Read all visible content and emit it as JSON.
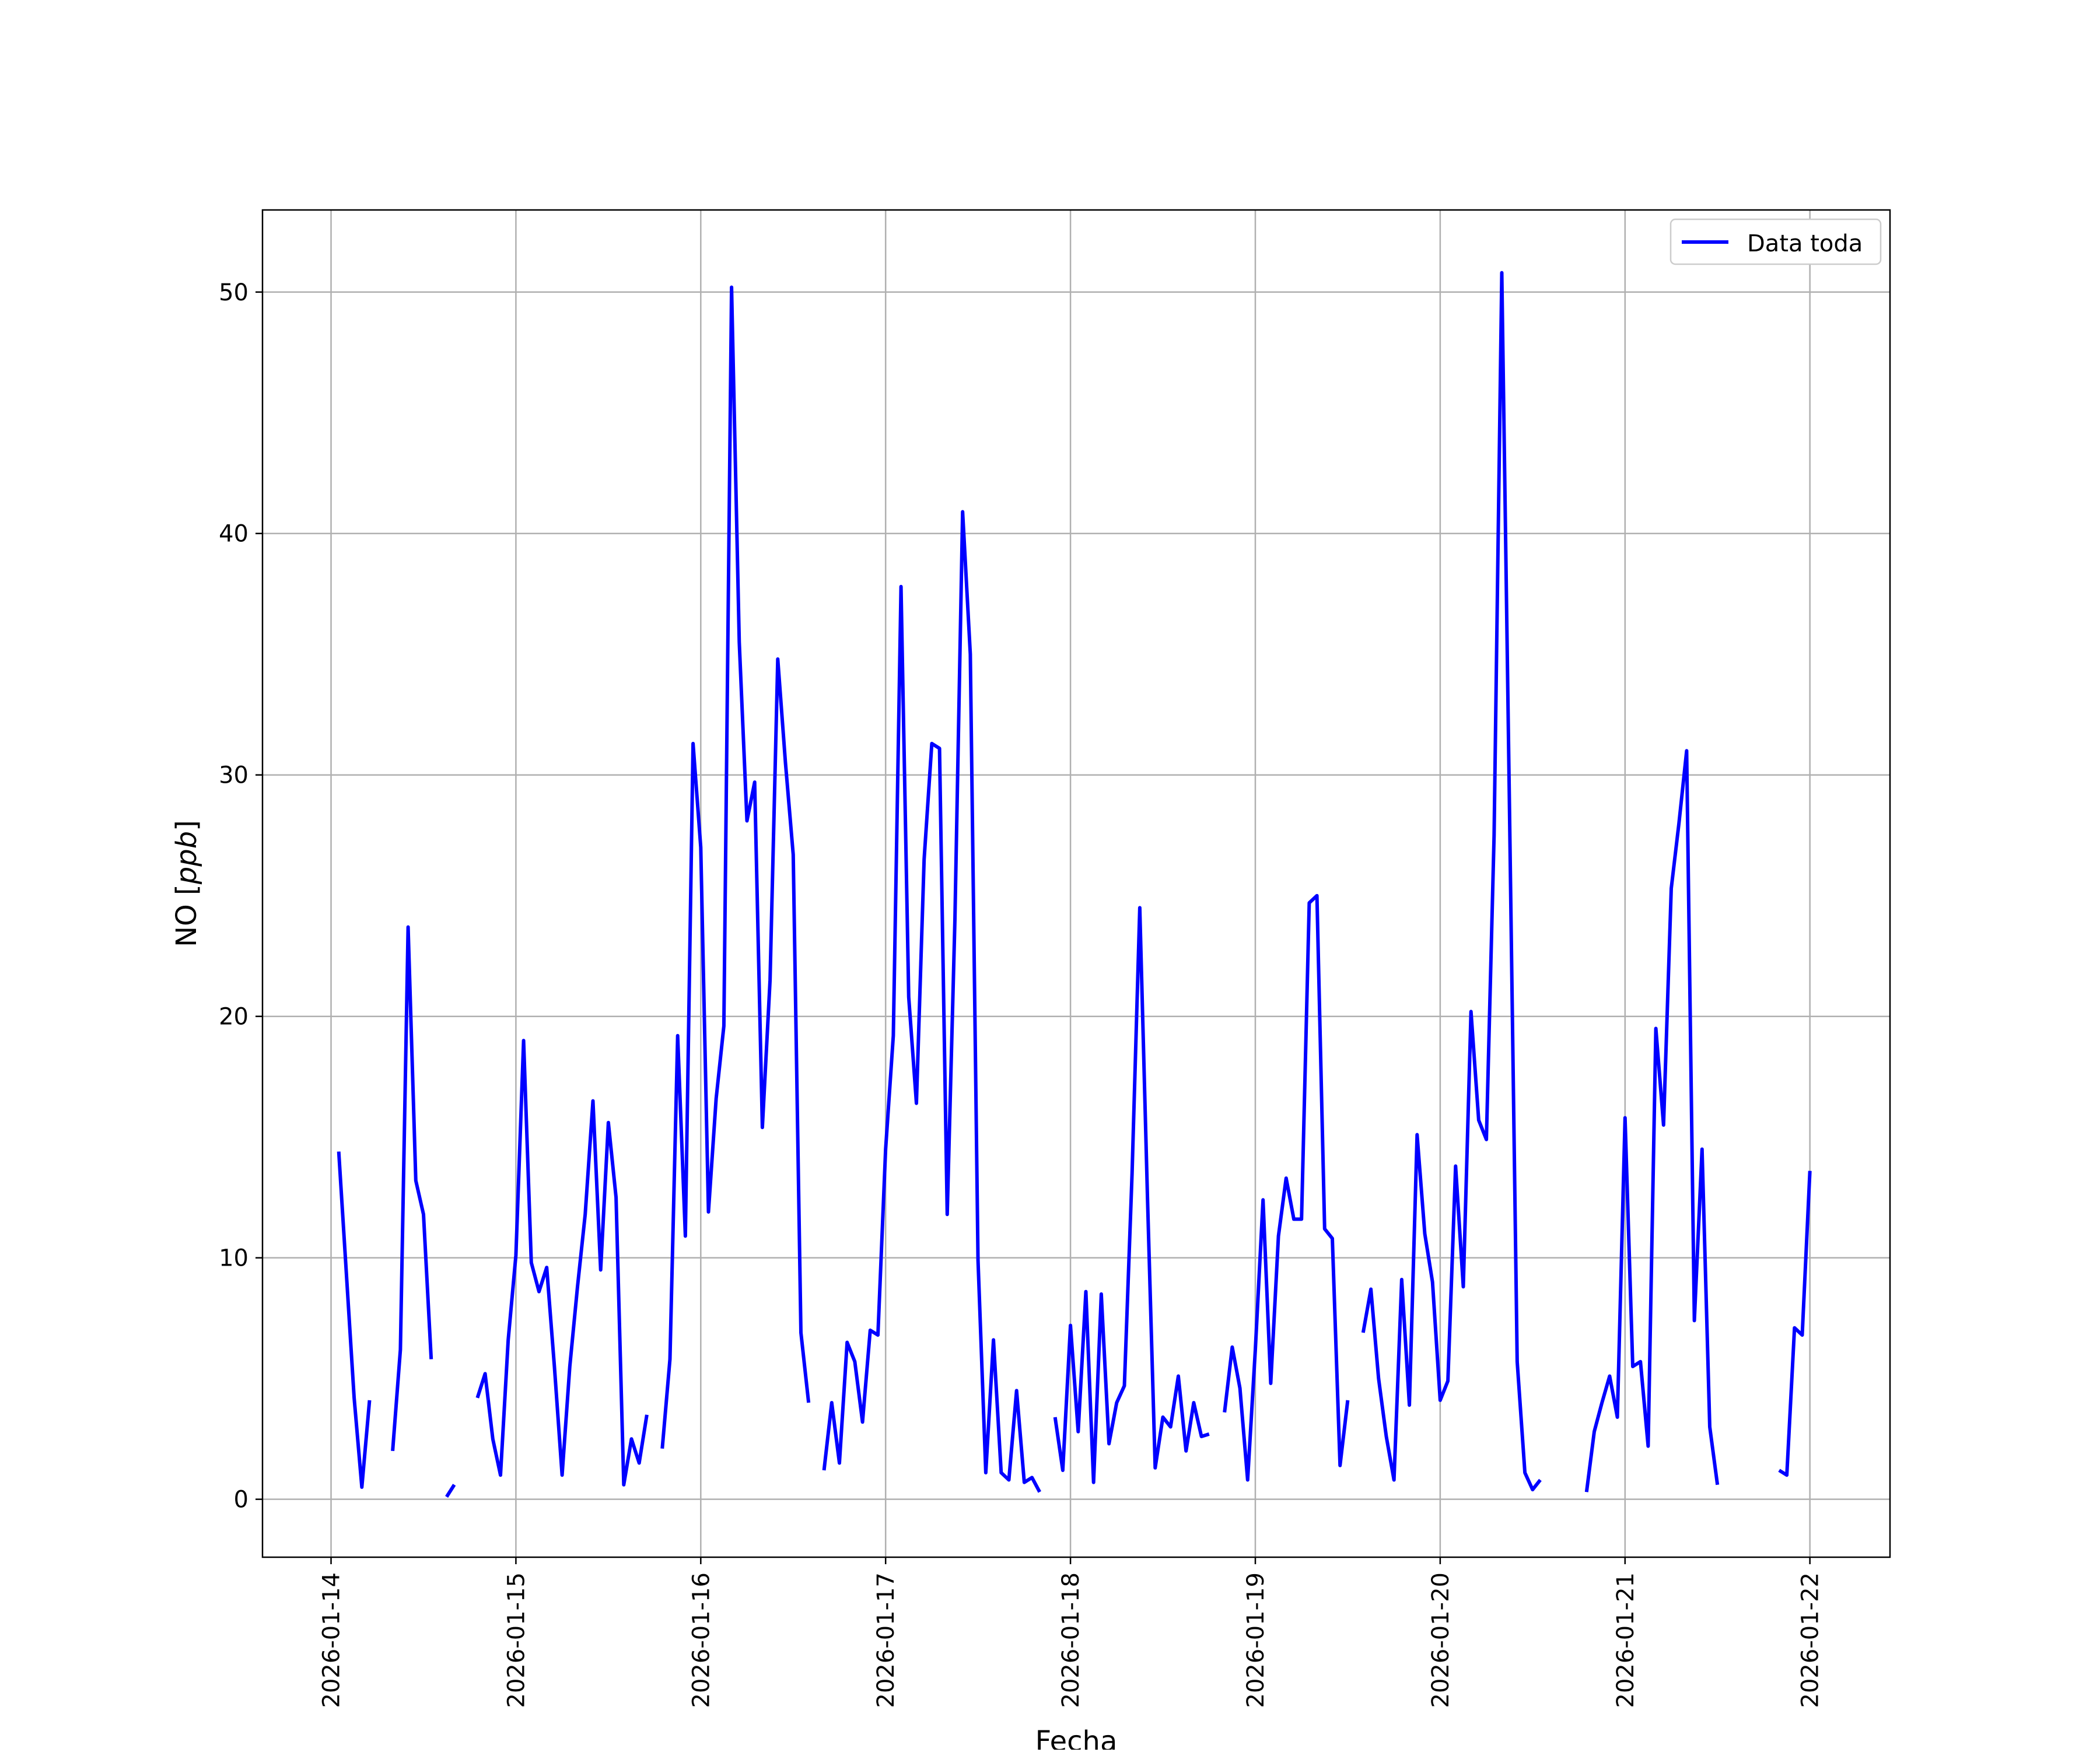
{
  "chart_data": {
    "type": "line",
    "title": "",
    "xlabel": "Fecha",
    "ylabel_main": "NO [",
    "ylabel_unit": "ppb",
    "ylabel_close": "]",
    "xlim": [
      "2026-01-13T15:06",
      "2026-01-22T10:24"
    ],
    "ylim": [
      -2.4,
      53.4
    ],
    "grid": true,
    "legend_position": "upper right",
    "y_ticks": [
      0,
      10,
      20,
      30,
      40,
      50
    ],
    "x_ticks": [
      "2026-01-14",
      "2026-01-15",
      "2026-01-16",
      "2026-01-17",
      "2026-01-18",
      "2026-01-19",
      "2026-01-20",
      "2026-01-21",
      "2026-01-22"
    ],
    "series": [
      {
        "name": "Data toda",
        "color": "#0000ff",
        "points": [
          [
            "2026-01-14T01:00",
            14.4
          ],
          [
            "2026-01-14T03:00",
            4.2
          ],
          [
            "2026-01-14T04:00",
            0.5
          ],
          [
            "2026-01-14T05:00",
            4.1
          ],
          [
            "2026-01-14T06:00",
            null
          ],
          [
            "2026-01-14T08:00",
            2.0
          ],
          [
            "2026-01-14T09:00",
            6.2
          ],
          [
            "2026-01-14T10:00",
            23.7
          ],
          [
            "2026-01-14T11:00",
            13.2
          ],
          [
            "2026-01-14T12:00",
            11.8
          ],
          [
            "2026-01-14T13:00",
            5.8
          ],
          [
            "2026-01-14T14:00",
            null
          ],
          [
            "2026-01-14T15:00",
            0.1
          ],
          [
            "2026-01-14T16:00",
            0.6
          ],
          [
            "2026-01-14T17:00",
            null
          ],
          [
            "2026-01-14T19:00",
            4.2
          ],
          [
            "2026-01-14T20:00",
            5.2
          ],
          [
            "2026-01-14T21:00",
            2.5
          ],
          [
            "2026-01-14T22:00",
            1.0
          ],
          [
            "2026-01-14T23:00",
            6.6
          ],
          [
            "2026-01-15T00:00",
            10.1
          ],
          [
            "2026-01-15T01:00",
            19.0
          ],
          [
            "2026-01-15T02:00",
            9.8
          ],
          [
            "2026-01-15T03:00",
            8.6
          ],
          [
            "2026-01-15T04:00",
            9.6
          ],
          [
            "2026-01-15T05:00",
            5.5
          ],
          [
            "2026-01-15T06:00",
            1.0
          ],
          [
            "2026-01-15T07:00",
            5.5
          ],
          [
            "2026-01-15T08:00",
            8.8
          ],
          [
            "2026-01-15T09:00",
            11.8
          ],
          [
            "2026-01-15T10:00",
            16.5
          ],
          [
            "2026-01-15T11:00",
            9.5
          ],
          [
            "2026-01-15T12:00",
            15.6
          ],
          [
            "2026-01-15T13:00",
            12.5
          ],
          [
            "2026-01-15T14:00",
            0.6
          ],
          [
            "2026-01-15T15:00",
            2.5
          ],
          [
            "2026-01-15T16:00",
            1.5
          ],
          [
            "2026-01-15T17:00",
            3.5
          ],
          [
            "2026-01-15T18:00",
            null
          ],
          [
            "2026-01-15T19:00",
            2.1
          ],
          [
            "2026-01-15T20:00",
            5.8
          ],
          [
            "2026-01-15T21:00",
            19.2
          ],
          [
            "2026-01-15T22:00",
            10.9
          ],
          [
            "2026-01-15T23:00",
            31.3
          ],
          [
            "2026-01-16T00:00",
            27.0
          ],
          [
            "2026-01-16T01:00",
            11.9
          ],
          [
            "2026-01-16T02:00",
            16.6
          ],
          [
            "2026-01-16T03:00",
            19.6
          ],
          [
            "2026-01-16T04:00",
            50.2
          ],
          [
            "2026-01-16T05:00",
            35.5
          ],
          [
            "2026-01-16T06:00",
            28.1
          ],
          [
            "2026-01-16T07:00",
            29.7
          ],
          [
            "2026-01-16T08:00",
            15.4
          ],
          [
            "2026-01-16T09:00",
            21.5
          ],
          [
            "2026-01-16T10:00",
            34.8
          ],
          [
            "2026-01-16T11:00",
            30.5
          ],
          [
            "2026-01-16T12:00",
            26.7
          ],
          [
            "2026-01-16T13:00",
            6.9
          ],
          [
            "2026-01-16T14:00",
            4.0
          ],
          [
            "2026-01-16T15:00",
            null
          ],
          [
            "2026-01-16T16:00",
            1.2
          ],
          [
            "2026-01-16T17:00",
            4.0
          ],
          [
            "2026-01-16T18:00",
            1.5
          ],
          [
            "2026-01-16T19:00",
            6.5
          ],
          [
            "2026-01-16T20:00",
            5.7
          ],
          [
            "2026-01-16T21:00",
            3.2
          ],
          [
            "2026-01-16T22:00",
            7.0
          ],
          [
            "2026-01-16T23:00",
            6.8
          ],
          [
            "2026-01-17T00:00",
            14.5
          ],
          [
            "2026-01-17T01:00",
            19.2
          ],
          [
            "2026-01-17T02:00",
            37.8
          ],
          [
            "2026-01-17T03:00",
            20.8
          ],
          [
            "2026-01-17T04:00",
            16.4
          ],
          [
            "2026-01-17T05:00",
            26.5
          ],
          [
            "2026-01-17T06:00",
            31.3
          ],
          [
            "2026-01-17T07:00",
            31.1
          ],
          [
            "2026-01-17T08:00",
            11.8
          ],
          [
            "2026-01-17T09:00",
            24.0
          ],
          [
            "2026-01-17T10:00",
            40.9
          ],
          [
            "2026-01-17T11:00",
            35.0
          ],
          [
            "2026-01-17T12:00",
            9.9
          ],
          [
            "2026-01-17T13:00",
            1.1
          ],
          [
            "2026-01-17T14:00",
            6.6
          ],
          [
            "2026-01-17T15:00",
            1.1
          ],
          [
            "2026-01-17T16:00",
            0.8
          ],
          [
            "2026-01-17T17:00",
            4.5
          ],
          [
            "2026-01-17T18:00",
            0.7
          ],
          [
            "2026-01-17T19:00",
            0.9
          ],
          [
            "2026-01-17T20:00",
            0.3
          ],
          [
            "2026-01-17T21:00",
            null
          ],
          [
            "2026-01-17T22:00",
            3.4
          ],
          [
            "2026-01-17T23:00",
            1.2
          ],
          [
            "2026-01-18T00:00",
            7.2
          ],
          [
            "2026-01-18T01:00",
            2.8
          ],
          [
            "2026-01-18T02:00",
            8.6
          ],
          [
            "2026-01-18T03:00",
            0.7
          ],
          [
            "2026-01-18T04:00",
            8.5
          ],
          [
            "2026-01-18T05:00",
            2.3
          ],
          [
            "2026-01-18T06:00",
            4.0
          ],
          [
            "2026-01-18T07:00",
            4.7
          ],
          [
            "2026-01-18T08:00",
            13.5
          ],
          [
            "2026-01-18T09:00",
            24.5
          ],
          [
            "2026-01-18T10:00",
            12.5
          ],
          [
            "2026-01-18T11:00",
            1.3
          ],
          [
            "2026-01-18T12:00",
            3.4
          ],
          [
            "2026-01-18T13:00",
            3.0
          ],
          [
            "2026-01-18T14:00",
            5.1
          ],
          [
            "2026-01-18T15:00",
            2.0
          ],
          [
            "2026-01-18T16:00",
            4.0
          ],
          [
            "2026-01-18T17:00",
            2.6
          ],
          [
            "2026-01-18T18:00",
            2.7
          ],
          [
            "2026-01-18T19:00",
            null
          ],
          [
            "2026-01-18T20:00",
            3.6
          ],
          [
            "2026-01-18T21:00",
            6.3
          ],
          [
            "2026-01-18T22:00",
            4.6
          ],
          [
            "2026-01-18T23:00",
            0.8
          ],
          [
            "2026-01-19T00:00",
            6.2
          ],
          [
            "2026-01-19T01:00",
            12.4
          ],
          [
            "2026-01-19T02:00",
            4.8
          ],
          [
            "2026-01-19T03:00",
            10.9
          ],
          [
            "2026-01-19T04:00",
            13.3
          ],
          [
            "2026-01-19T05:00",
            11.6
          ],
          [
            "2026-01-19T06:00",
            11.6
          ],
          [
            "2026-01-19T07:00",
            24.7
          ],
          [
            "2026-01-19T08:00",
            25.0
          ],
          [
            "2026-01-19T09:00",
            11.2
          ],
          [
            "2026-01-19T10:00",
            10.8
          ],
          [
            "2026-01-19T11:00",
            1.4
          ],
          [
            "2026-01-19T12:00",
            4.1
          ],
          [
            "2026-01-19T13:00",
            null
          ],
          [
            "2026-01-19T14:00",
            6.9
          ],
          [
            "2026-01-19T15:00",
            8.7
          ],
          [
            "2026-01-19T16:00",
            5.0
          ],
          [
            "2026-01-19T17:00",
            2.6
          ],
          [
            "2026-01-19T18:00",
            0.8
          ],
          [
            "2026-01-19T19:00",
            9.1
          ],
          [
            "2026-01-19T20:00",
            3.9
          ],
          [
            "2026-01-19T21:00",
            15.1
          ],
          [
            "2026-01-19T22:00",
            11.0
          ],
          [
            "2026-01-19T23:00",
            9.0
          ],
          [
            "2026-01-20T00:00",
            4.1
          ],
          [
            "2026-01-20T01:00",
            4.9
          ],
          [
            "2026-01-20T02:00",
            13.8
          ],
          [
            "2026-01-20T03:00",
            8.8
          ],
          [
            "2026-01-20T04:00",
            20.2
          ],
          [
            "2026-01-20T05:00",
            15.7
          ],
          [
            "2026-01-20T06:00",
            14.9
          ],
          [
            "2026-01-20T07:00",
            27.5
          ],
          [
            "2026-01-20T08:00",
            50.8
          ],
          [
            "2026-01-20T09:00",
            28.6
          ],
          [
            "2026-01-20T10:00",
            5.7
          ],
          [
            "2026-01-20T11:00",
            1.1
          ],
          [
            "2026-01-20T12:00",
            0.4
          ],
          [
            "2026-01-20T13:00",
            0.8
          ],
          [
            "2026-01-20T14:00",
            null
          ],
          [
            "2026-01-20T19:00",
            0.3
          ],
          [
            "2026-01-20T20:00",
            2.8
          ],
          [
            "2026-01-20T21:00",
            4.0
          ],
          [
            "2026-01-20T22:00",
            5.1
          ],
          [
            "2026-01-20T23:00",
            3.4
          ],
          [
            "2026-01-21T00:00",
            15.8
          ],
          [
            "2026-01-21T01:00",
            5.5
          ],
          [
            "2026-01-21T02:00",
            5.7
          ],
          [
            "2026-01-21T03:00",
            2.2
          ],
          [
            "2026-01-21T04:00",
            19.5
          ],
          [
            "2026-01-21T05:00",
            15.5
          ],
          [
            "2026-01-21T06:00",
            25.3
          ],
          [
            "2026-01-21T07:00",
            28.0
          ],
          [
            "2026-01-21T08:00",
            31.0
          ],
          [
            "2026-01-21T09:00",
            7.4
          ],
          [
            "2026-01-21T10:00",
            14.5
          ],
          [
            "2026-01-21T11:00",
            3.0
          ],
          [
            "2026-01-21T12:00",
            0.6
          ],
          [
            "2026-01-21T13:00",
            null
          ],
          [
            "2026-01-21T20:00",
            1.2
          ],
          [
            "2026-01-21T21:00",
            1.0
          ],
          [
            "2026-01-21T22:00",
            7.1
          ],
          [
            "2026-01-21T23:00",
            6.8
          ],
          [
            "2026-01-22T00:00",
            13.6
          ]
        ]
      }
    ]
  }
}
